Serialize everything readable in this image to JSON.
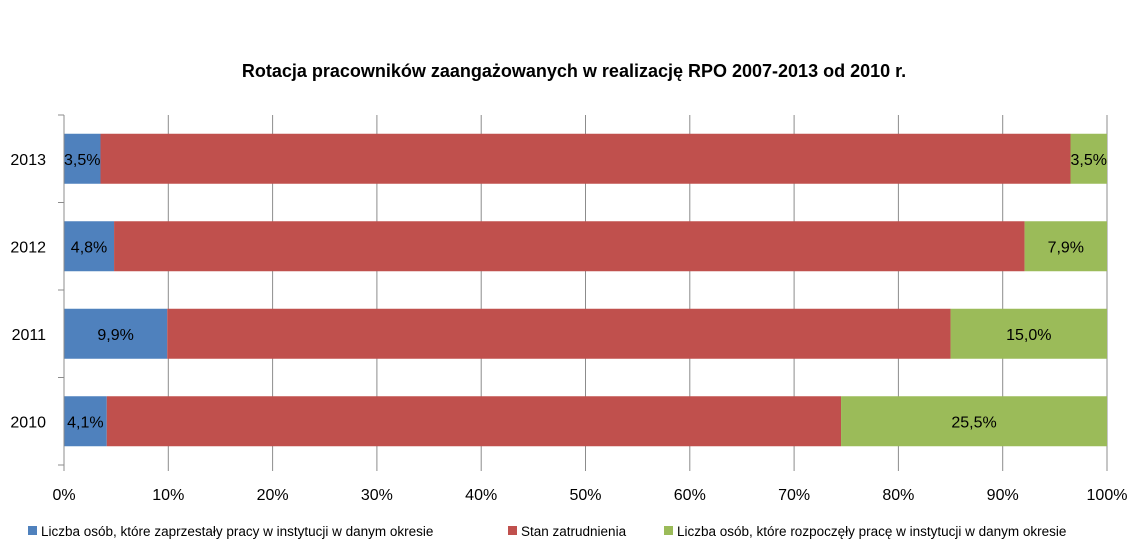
{
  "chart_data": {
    "type": "bar",
    "orientation": "horizontal",
    "stacked": "percent",
    "title": "Rotacja pracowników zaangażowanych w realizację RPO 2007-2013 od 2010 r.",
    "categories": [
      "2013",
      "2012",
      "2011",
      "2010"
    ],
    "series": [
      {
        "name": "Liczba osób, które zaprzestały pracy w instytucji w danym okresie",
        "color": "#4f81bd",
        "values": [
          3.5,
          4.8,
          9.9,
          4.1
        ],
        "labels": [
          "3,5%",
          "4,8%",
          "9,9%",
          "4,1%"
        ]
      },
      {
        "name": "Stan zatrudnienia",
        "color": "#c0504d",
        "values": [
          93.0,
          87.3,
          75.1,
          70.4
        ],
        "labels": [
          "",
          "",
          "",
          ""
        ]
      },
      {
        "name": "Liczba osób, które rozpoczęły pracę w instytucji w danym okresie",
        "color": "#9bbb59",
        "values": [
          3.5,
          7.9,
          15.0,
          25.5
        ],
        "labels": [
          "3,5%",
          "7,9%",
          "15,0%",
          "25,5%"
        ]
      }
    ],
    "x_ticks": [
      "0%",
      "10%",
      "20%",
      "30%",
      "40%",
      "50%",
      "60%",
      "70%",
      "80%",
      "90%",
      "100%"
    ],
    "xlim": [
      0,
      100
    ],
    "grid": true,
    "legend_position": "bottom"
  }
}
